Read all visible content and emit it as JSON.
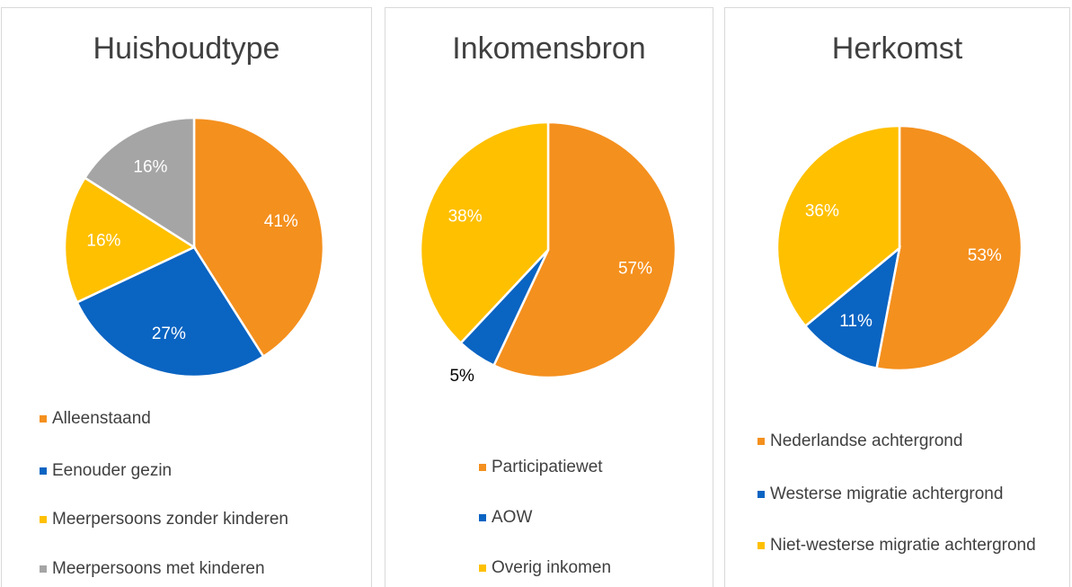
{
  "chart_data": [
    {
      "type": "pie",
      "title": "Huishoudtype",
      "categories": [
        "Alleenstaand",
        "Eenouder gezin",
        "Meerpersoons zonder kinderen",
        "Meerpersoons met kinderen"
      ],
      "values": [
        41,
        27,
        16,
        16
      ],
      "value_labels": [
        "41%",
        "27%",
        "16%",
        "16%"
      ],
      "colors": [
        "#f4901e",
        "#0a64c2",
        "#ffc000",
        "#a5a5a5"
      ],
      "legend": "bottom"
    },
    {
      "type": "pie",
      "title": "Inkomensbron",
      "categories": [
        "Participatiewet",
        "AOW",
        "Overig inkomen"
      ],
      "values": [
        57,
        5,
        38
      ],
      "value_labels": [
        "57%",
        "5%",
        "38%"
      ],
      "colors": [
        "#f4901e",
        "#0a64c2",
        "#ffc000"
      ],
      "legend": "bottom"
    },
    {
      "type": "pie",
      "title": "Herkomst",
      "categories": [
        "Nederlandse achtergrond",
        "Westerse migratie achtergrond",
        "Niet-westerse migratie achtergrond"
      ],
      "values": [
        53,
        11,
        36
      ],
      "value_labels": [
        "53%",
        "11%",
        "36%"
      ],
      "colors": [
        "#f4901e",
        "#0a64c2",
        "#ffc000"
      ],
      "legend": "bottom"
    }
  ]
}
